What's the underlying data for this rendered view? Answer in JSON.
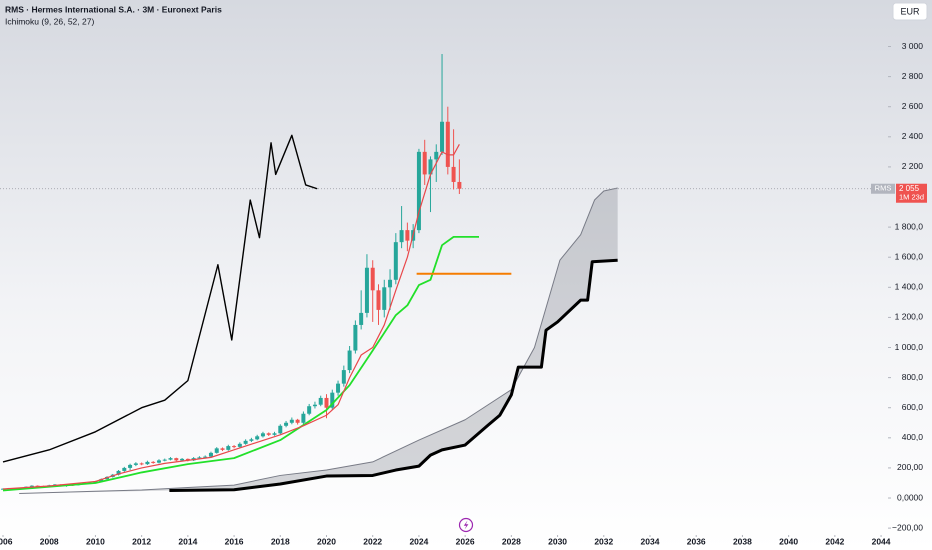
{
  "chart_data": {
    "type": "candlestick",
    "title": "RMS · Hermes International S.A. · 3M · Euronext Paris",
    "indicator_label": "Ichimoku (9, 26, 52, 27)",
    "currency": "EUR",
    "symbol": "RMS",
    "last_price": {
      "value": 2055,
      "label": "2 055"
    },
    "countdown": "1M 23d",
    "up_color": "#26a69a",
    "down_color": "#ef5350",
    "xlim": [
      2005.87,
      2044.3
    ],
    "ylim": [
      -259,
      3309
    ],
    "xticks": [
      2006,
      2008,
      2010,
      2012,
      2014,
      2016,
      2018,
      2020,
      2022,
      2024,
      2026,
      2028,
      2030,
      2032,
      2034,
      2036,
      2038,
      2040,
      2042,
      2044
    ],
    "yticks": [
      {
        "value": 3000,
        "label": "3 000"
      },
      {
        "value": 2800,
        "label": "2 800"
      },
      {
        "value": 2600,
        "label": "2 600"
      },
      {
        "value": 2400,
        "label": "2 400"
      },
      {
        "value": 2200,
        "label": "2 200"
      },
      {
        "value": 1800,
        "label": "1 800,0"
      },
      {
        "value": 1600,
        "label": "1 600,0"
      },
      {
        "value": 1400,
        "label": "1 400,0"
      },
      {
        "value": 1200,
        "label": "1 200,0"
      },
      {
        "value": 1000,
        "label": "1 000,0"
      },
      {
        "value": 800,
        "label": "800,0"
      },
      {
        "value": 600,
        "label": "600,0"
      },
      {
        "value": 400,
        "label": "400,0"
      },
      {
        "value": 200,
        "label": "200,00"
      },
      {
        "value": 0,
        "label": "0,0000"
      },
      {
        "value": -200,
        "label": "−200,00"
      }
    ],
    "x": [
      2006,
      2006.25,
      2006.5,
      2006.75,
      2007,
      2007.25,
      2007.5,
      2007.75,
      2008,
      2008.25,
      2008.5,
      2008.75,
      2009,
      2009.25,
      2009.5,
      2009.75,
      2010,
      2010.25,
      2010.5,
      2010.75,
      2011,
      2011.25,
      2011.5,
      2011.75,
      2012,
      2012.25,
      2012.5,
      2012.75,
      2013,
      2013.25,
      2013.5,
      2013.75,
      2014,
      2014.25,
      2014.5,
      2014.75,
      2015,
      2015.25,
      2015.5,
      2015.75,
      2016,
      2016.25,
      2016.5,
      2016.75,
      2017,
      2017.25,
      2017.5,
      2017.75,
      2018,
      2018.25,
      2018.5,
      2018.75,
      2019,
      2019.25,
      2019.5,
      2019.75,
      2020,
      2020.25,
      2020.5,
      2020.75,
      2021,
      2021.25,
      2021.5,
      2021.75,
      2022,
      2022.25,
      2022.5,
      2022.75,
      2023,
      2023.25,
      2023.5,
      2023.75,
      2024,
      2024.25,
      2024.5,
      2024.75,
      2025,
      2025.25,
      2025.5,
      2025.75
    ],
    "open": [
      58,
      62,
      65,
      60,
      68,
      75,
      82,
      80,
      78,
      85,
      90,
      80,
      88,
      85,
      95,
      100,
      102,
      110,
      125,
      140,
      155,
      180,
      200,
      220,
      230,
      225,
      240,
      235,
      250,
      255,
      265,
      250,
      260,
      250,
      265,
      270,
      275,
      300,
      330,
      320,
      345,
      340,
      360,
      380,
      390,
      410,
      430,
      420,
      430,
      480,
      500,
      520,
      500,
      560,
      610,
      620,
      665,
      600,
      700,
      760,
      850,
      980,
      1150,
      1230,
      1530,
      1380,
      1250,
      1400,
      1450,
      1700,
      1780,
      1710,
      1780,
      2300,
      2150,
      2250,
      2300,
      2500,
      2200,
      2100
    ],
    "high": [
      64,
      67,
      66,
      70,
      77,
      85,
      84,
      82,
      88,
      93,
      92,
      91,
      90,
      98,
      104,
      106,
      114,
      130,
      145,
      160,
      186,
      207,
      228,
      238,
      236,
      248,
      245,
      258,
      262,
      272,
      268,
      266,
      263,
      272,
      278,
      283,
      308,
      338,
      336,
      354,
      352,
      370,
      390,
      400,
      420,
      440,
      436,
      440,
      490,
      512,
      535,
      526,
      575,
      625,
      640,
      680,
      690,
      720,
      780,
      880,
      1010,
      1180,
      1380,
      1620,
      1580,
      1420,
      1450,
      1520,
      1760,
      1940,
      1830,
      1820,
      2320,
      2380,
      2270,
      2350,
      2950,
      2600,
      2450,
      2250
    ],
    "low": [
      56,
      60,
      58,
      59,
      66,
      73,
      78,
      76,
      76,
      83,
      76,
      75,
      80,
      83,
      92,
      96,
      99,
      106,
      120,
      136,
      150,
      174,
      185,
      212,
      218,
      220,
      228,
      230,
      244,
      250,
      244,
      245,
      243,
      246,
      259,
      264,
      270,
      295,
      312,
      314,
      330,
      333,
      354,
      372,
      384,
      402,
      412,
      414,
      424,
      470,
      490,
      488,
      492,
      550,
      595,
      610,
      530,
      585,
      680,
      740,
      830,
      960,
      1120,
      1200,
      1170,
      1150,
      1200,
      1250,
      1420,
      1660,
      1640,
      1660,
      1760,
      2080,
      1900,
      2100,
      2280,
      2150,
      2050,
      2020
    ],
    "close": [
      62,
      65,
      60,
      68,
      75,
      82,
      80,
      78,
      85,
      90,
      80,
      88,
      85,
      95,
      100,
      102,
      110,
      125,
      140,
      155,
      180,
      200,
      220,
      230,
      225,
      240,
      235,
      250,
      255,
      265,
      250,
      260,
      250,
      265,
      270,
      275,
      300,
      330,
      320,
      345,
      340,
      360,
      380,
      390,
      410,
      430,
      420,
      430,
      480,
      500,
      520,
      500,
      560,
      610,
      620,
      665,
      600,
      700,
      760,
      850,
      980,
      1150,
      1230,
      1530,
      1380,
      1250,
      1400,
      1450,
      1700,
      1780,
      1710,
      1780,
      2300,
      2150,
      2250,
      2300,
      2500,
      2200,
      2100,
      2055
    ],
    "cloud": {
      "color": "#787b86",
      "span_a": {
        "color": "#787b86",
        "width": 1,
        "x": [
          2006.7,
          2010,
          2012,
          2014,
          2016,
          2018,
          2020,
          2022,
          2024,
          2026,
          2028,
          2029,
          2030.1,
          2031,
          2031.6,
          2032,
          2032.6
        ],
        "values": [
          30,
          45,
          53,
          70,
          86,
          150,
          186,
          240,
          385,
          520,
          720,
          1000,
          1580,
          1750,
          1980,
          2040,
          2060
        ]
      },
      "span_b": {
        "color": "#000000",
        "width": 3,
        "x": [
          2013.2,
          2016,
          2018,
          2020,
          2022,
          2023,
          2024,
          2024.5,
          2025,
          2026,
          2027,
          2027.5,
          2028,
          2028.3,
          2029.3,
          2029.5,
          2030,
          2031,
          2031.3,
          2031.5,
          2032.6
        ],
        "values": [
          50,
          55,
          93,
          146,
          150,
          186,
          212,
          285,
          320,
          352,
          485,
          550,
          685,
          870,
          870,
          1115,
          1170,
          1315,
          1315,
          1570,
          1580
        ]
      }
    },
    "overlays": [
      {
        "color": "#000000",
        "width": 1.4,
        "x": [
          2006,
          2008,
          2010,
          2012,
          2013,
          2014,
          2015.3,
          2015.9,
          2016.7,
          2017.1,
          2017.6,
          2017.8,
          2018.5,
          2019.1,
          2019.6
        ],
        "values": [
          240,
          320,
          440,
          600,
          650,
          780,
          1550,
          1050,
          1980,
          1730,
          2360,
          2150,
          2410,
          2080,
          2055
        ]
      },
      {
        "color": "#22e02a",
        "width": 1.8,
        "x": [
          2006,
          2008,
          2010,
          2012,
          2014,
          2016,
          2018,
          2020,
          2021,
          2022,
          2023,
          2023.5,
          2024,
          2024.5,
          2025,
          2025.5,
          2026.6
        ],
        "values": [
          50,
          75,
          100,
          170,
          225,
          265,
          385,
          585,
          750,
          980,
          1215,
          1280,
          1415,
          1450,
          1680,
          1735,
          1735
        ]
      },
      {
        "color": "#e8474a",
        "width": 1.2,
        "x": [
          2006,
          2008,
          2010,
          2011,
          2012,
          2013,
          2014,
          2015,
          2016,
          2017,
          2018,
          2019,
          2020,
          2020.5,
          2021,
          2021.5,
          2022,
          2022.5,
          2023,
          2023.5,
          2024,
          2024.5,
          2025,
          2025.25,
          2025.5,
          2025.75
        ],
        "values": [
          60,
          80,
          110,
          160,
          200,
          230,
          250,
          270,
          320,
          370,
          420,
          480,
          550,
          620,
          800,
          950,
          1000,
          1150,
          1380,
          1600,
          1900,
          2150,
          2300,
          2280,
          2280,
          2350
        ]
      },
      {
        "color": "#f57c00",
        "width": 2,
        "x": [
          2023.9,
          2028
        ],
        "values": [
          1490,
          1490
        ]
      }
    ]
  }
}
